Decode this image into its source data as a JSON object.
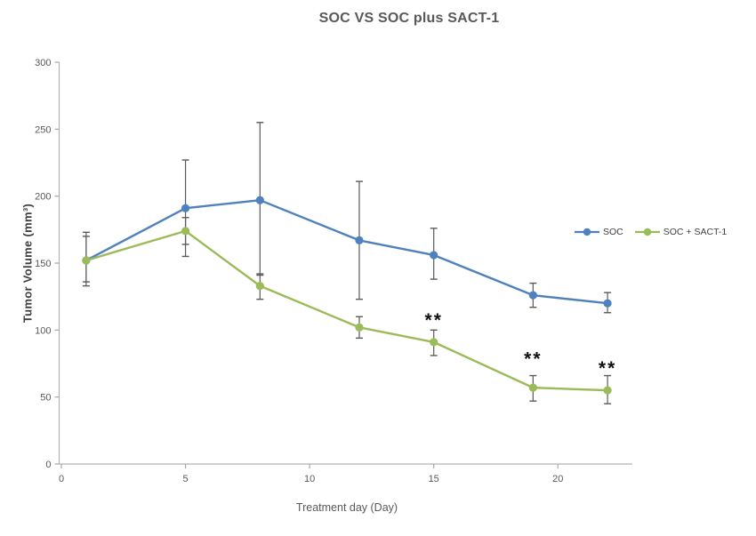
{
  "title": "SOC VS SOC plus SACT-1",
  "chart_data": {
    "type": "line",
    "title": "SOC VS SOC plus SACT-1",
    "xlabel": "Treatment day (Day)",
    "ylabel": "Tumor Volume (mm³)",
    "x": [
      1,
      5,
      8,
      12,
      15,
      19,
      22
    ],
    "xlim": [
      0,
      23
    ],
    "ylim": [
      0,
      300
    ],
    "x_ticks": [
      0,
      5,
      10,
      15,
      20
    ],
    "y_ticks": [
      0,
      50,
      100,
      150,
      200,
      250,
      300
    ],
    "grid": false,
    "legend_position": "right-middle",
    "markers": "circle",
    "error_bars": true,
    "series": [
      {
        "name": "SOC",
        "color": "#4F81BD",
        "values": [
          152,
          191,
          197,
          167,
          156,
          126,
          120
        ],
        "error_plus": [
          21,
          36,
          58,
          44,
          20,
          9,
          8
        ],
        "error_minus": [
          16,
          36,
          56,
          44,
          18,
          9,
          7
        ]
      },
      {
        "name": "SOC + SACT-1",
        "color": "#9BBB59",
        "values": [
          152,
          174,
          133,
          102,
          91,
          57,
          55
        ],
        "error_plus": [
          18,
          10,
          9,
          8,
          9,
          9,
          11
        ],
        "error_minus": [
          19,
          10,
          10,
          8,
          10,
          10,
          10
        ]
      }
    ],
    "annotations": [
      {
        "x": 15,
        "y": 109,
        "text": "**"
      },
      {
        "x": 19,
        "y": 80,
        "text": "**"
      },
      {
        "x": 22,
        "y": 73,
        "text": "**"
      }
    ]
  },
  "legend": {
    "items": [
      {
        "label": "SOC",
        "color": "#4F81BD"
      },
      {
        "label": "SOC + SACT-1",
        "color": "#9BBB59"
      }
    ]
  },
  "colors": {
    "axis": "#b3b3b3",
    "tick": "#a6a6a6",
    "tick_label": "#595959",
    "title": "#595959",
    "error_bar": "#5a5a5a",
    "annotation": "#111111",
    "background": "#ffffff"
  }
}
